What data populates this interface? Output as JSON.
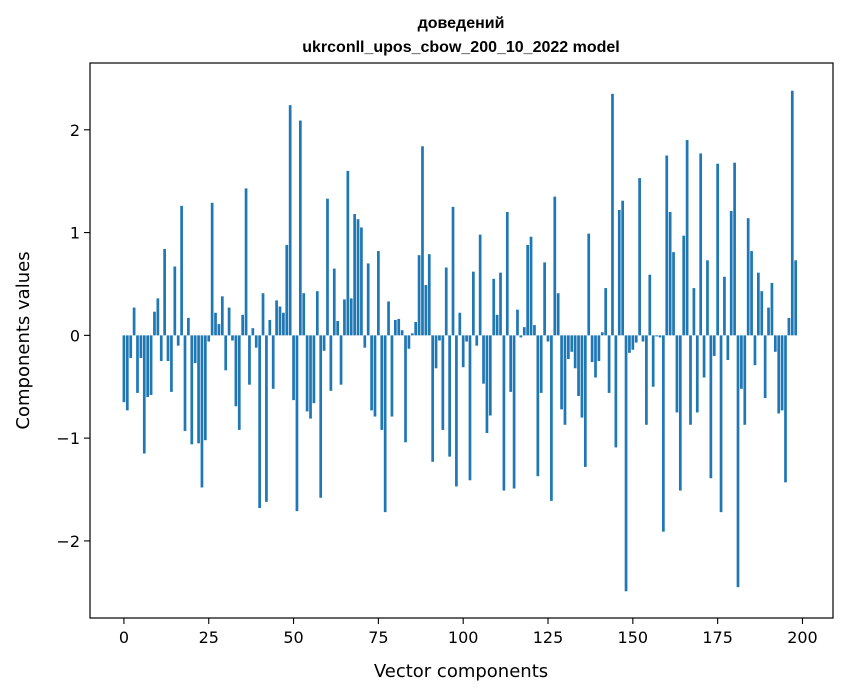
{
  "chart_data": {
    "type": "bar",
    "title_line1": "доведений",
    "title_line2": "ukrconll_upos_cbow_200_10_2022 model",
    "xlabel": "Vector components",
    "ylabel": "Components values",
    "xlim": [
      -10,
      209
    ],
    "ylim": [
      -2.75,
      2.65
    ],
    "xticks": [
      0,
      25,
      50,
      75,
      100,
      125,
      150,
      175,
      200
    ],
    "xtick_labels": [
      "0",
      "25",
      "50",
      "75",
      "100",
      "125",
      "150",
      "175",
      "200"
    ],
    "yticks": [
      -2,
      -1,
      0,
      1,
      2
    ],
    "ytick_labels": [
      "−2",
      "−1",
      "0",
      "1",
      "2"
    ],
    "grid": false,
    "bar_color": "#1f77b4",
    "values": [
      -0.65,
      -0.73,
      -0.22,
      0.27,
      -0.56,
      -0.22,
      -1.15,
      -0.6,
      -0.58,
      0.23,
      0.36,
      -0.25,
      0.84,
      -0.25,
      -0.55,
      0.67,
      -0.1,
      1.26,
      -0.93,
      0.17,
      -1.06,
      -0.27,
      -1.05,
      -1.48,
      -1.02,
      -0.06,
      1.29,
      0.22,
      0.11,
      0.38,
      -0.34,
      0.27,
      -0.05,
      -0.69,
      -0.92,
      0.2,
      1.43,
      -0.48,
      0.07,
      -0.12,
      -1.68,
      0.41,
      -1.62,
      0.15,
      -0.52,
      0.34,
      0.28,
      0.22,
      0.88,
      2.24,
      -0.63,
      -1.71,
      2.09,
      0.41,
      -0.74,
      -0.81,
      -0.66,
      0.43,
      -1.58,
      -0.15,
      1.33,
      -0.54,
      0.65,
      0.14,
      -0.48,
      0.35,
      1.6,
      0.36,
      1.18,
      1.13,
      1.05,
      -0.12,
      0.7,
      -0.73,
      -0.79,
      0.82,
      -0.92,
      -1.72,
      0.33,
      -0.79,
      0.15,
      0.16,
      0.05,
      -1.04,
      -0.13,
      0.02,
      0.13,
      0.78,
      1.84,
      0.49,
      0.79,
      -1.23,
      -0.32,
      -0.05,
      -0.92,
      0.66,
      -1.18,
      1.25,
      -1.47,
      0.22,
      -0.31,
      -0.06,
      -1.41,
      0.62,
      -0.1,
      0.98,
      -0.47,
      -0.95,
      -0.78,
      0.55,
      0.2,
      0.61,
      -1.51,
      1.2,
      -0.55,
      -1.49,
      0.25,
      -0.02,
      0.08,
      0.88,
      0.96,
      0.1,
      -1.37,
      -0.56,
      0.71,
      -0.06,
      -1.61,
      1.35,
      0.41,
      -0.72,
      -0.87,
      -0.23,
      -0.16,
      -0.32,
      -0.59,
      -0.8,
      -1.28,
      0.99,
      -0.26,
      -0.41,
      -0.25,
      0.03,
      0.46,
      -0.56,
      2.35,
      -1.09,
      1.22,
      1.31,
      -2.49,
      -0.17,
      -0.14,
      -0.07,
      1.53,
      -0.06,
      -0.87,
      0.59,
      -0.5,
      -0.01,
      -0.02,
      -1.91,
      1.75,
      1.2,
      0.81,
      -0.75,
      -1.51,
      0.97,
      1.9,
      -0.87,
      0.46,
      -0.75,
      1.77,
      -0.41,
      0.73,
      -1.39,
      -0.2,
      1.67,
      -1.72,
      0.57,
      -0.24,
      1.21,
      1.68,
      -2.45,
      -0.52,
      -0.87,
      1.14,
      0.82,
      -0.29,
      0.61,
      0.43,
      -0.61,
      0.27,
      0.51,
      -0.16,
      -0.76,
      -0.73,
      -1.43,
      0.17,
      2.38,
      0.73
    ]
  }
}
